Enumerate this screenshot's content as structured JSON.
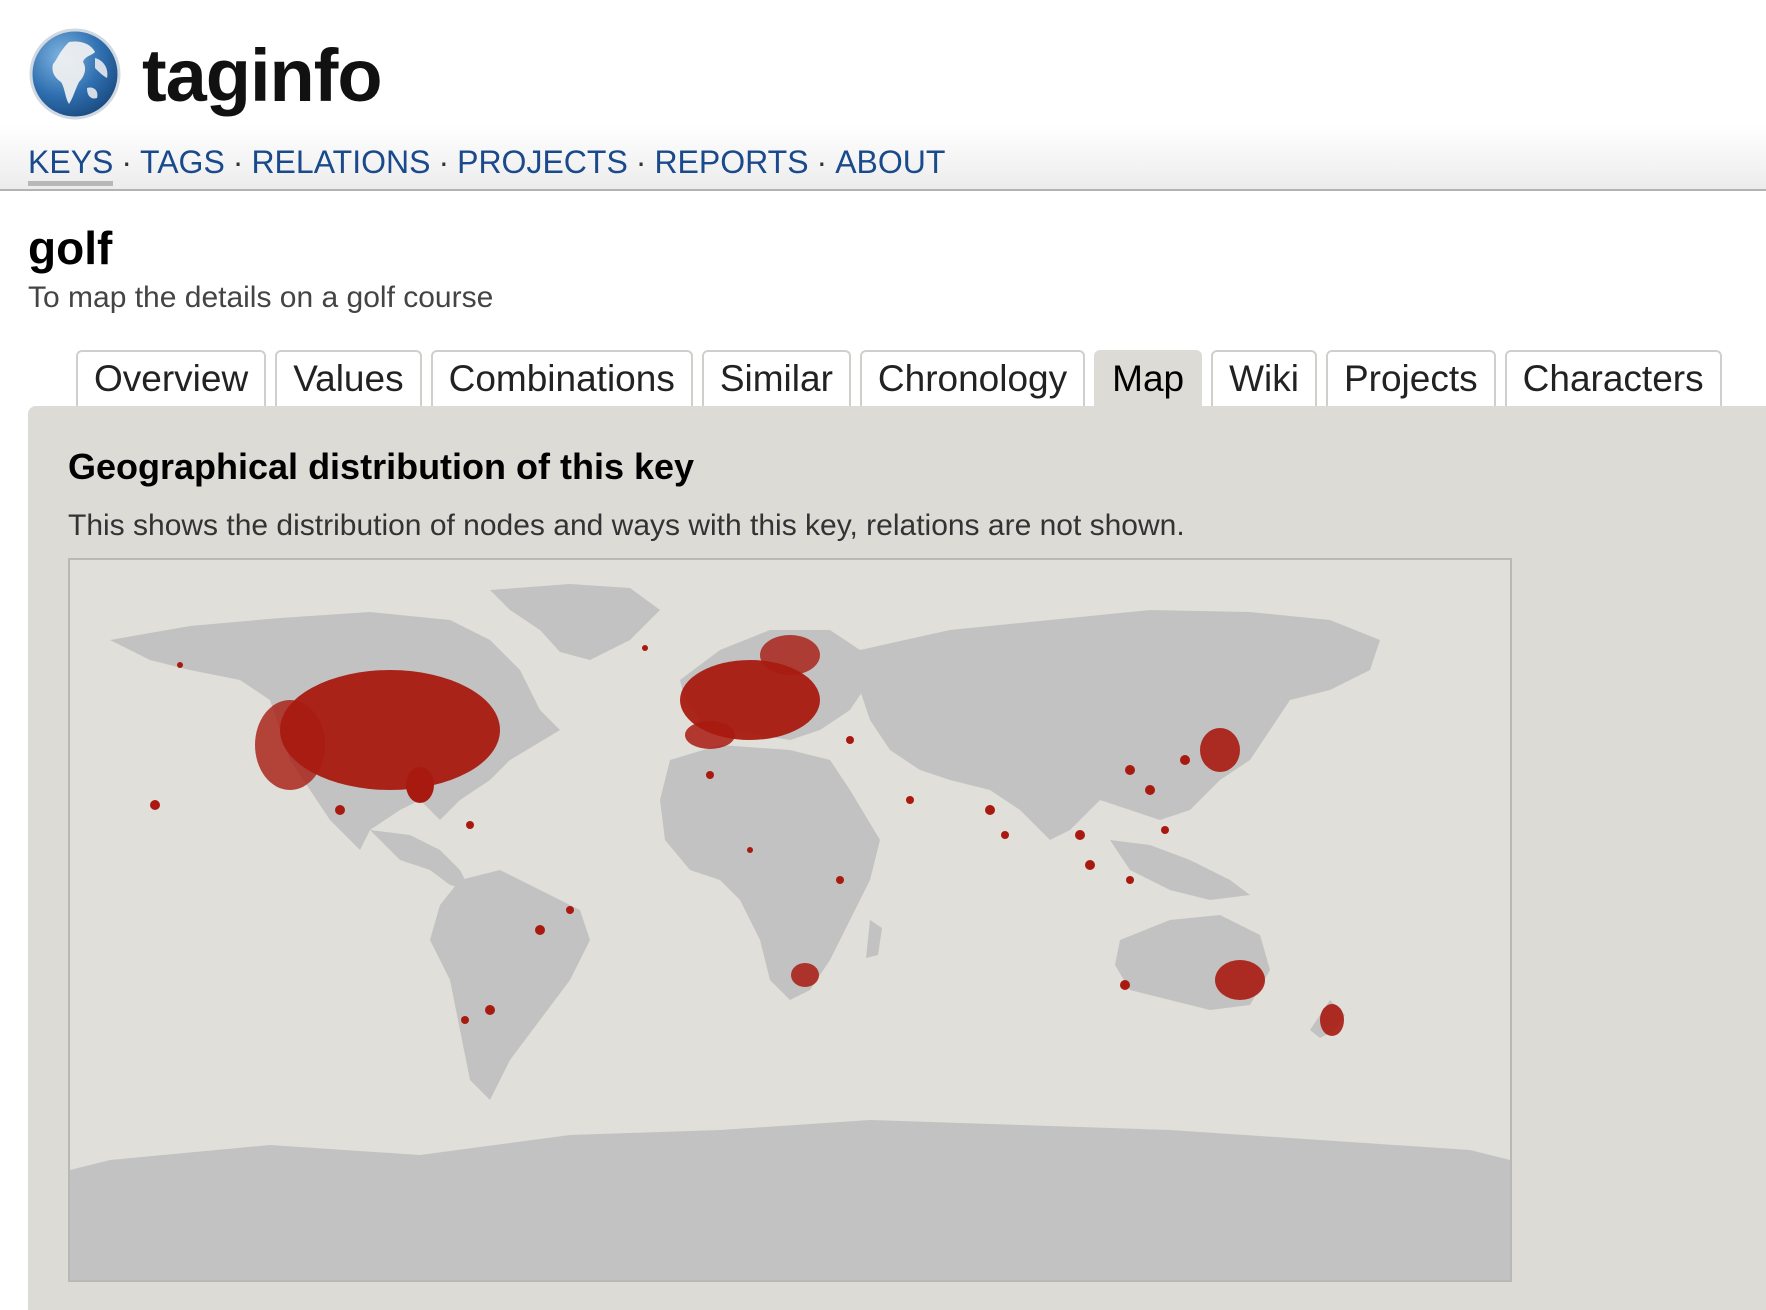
{
  "app": {
    "name": "taginfo",
    "logo_icon": "globe-icon"
  },
  "nav": {
    "items": [
      {
        "label": "KEYS",
        "active": true
      },
      {
        "label": "TAGS",
        "active": false
      },
      {
        "label": "RELATIONS",
        "active": false
      },
      {
        "label": "PROJECTS",
        "active": false
      },
      {
        "label": "REPORTS",
        "active": false
      },
      {
        "label": "ABOUT",
        "active": false
      }
    ],
    "separator": "·"
  },
  "page": {
    "title": "golf",
    "description": "To map the details on a golf course"
  },
  "tabs": [
    {
      "label": "Overview",
      "active": false
    },
    {
      "label": "Values",
      "active": false
    },
    {
      "label": "Combinations",
      "active": false
    },
    {
      "label": "Similar",
      "active": false
    },
    {
      "label": "Chronology",
      "active": false
    },
    {
      "label": "Map",
      "active": true
    },
    {
      "label": "Wiki",
      "active": false
    },
    {
      "label": "Projects",
      "active": false
    },
    {
      "label": "Characters",
      "active": false
    }
  ],
  "map_section": {
    "heading": "Geographical distribution of this key",
    "description": "This shows the distribution of nodes and ways with this key, relations are not shown."
  },
  "colors": {
    "link": "#1a4a8c",
    "panel_bg": "#dcdbd6",
    "ocean": "#e0dfda",
    "land": "#c2c2c2",
    "data_points": "#a81a10"
  }
}
